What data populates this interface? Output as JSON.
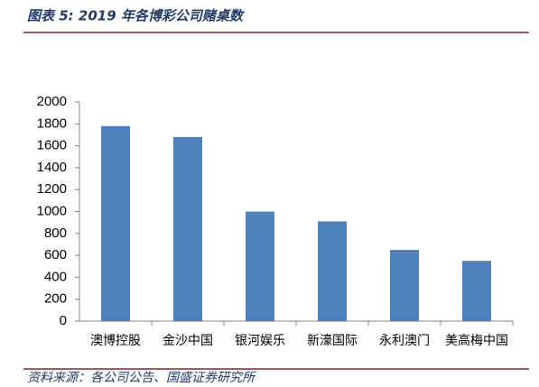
{
  "chart_data": {
    "type": "bar",
    "title": "图表 5: 2019 年各博彩公司赌桌数",
    "source": "资料来源：各公司公告、国盛证券研究所",
    "categories": [
      "澳博控股",
      "金沙中国",
      "银河娱乐",
      "新濠国际",
      "永利澳门",
      "美高梅中国"
    ],
    "values": [
      1780,
      1680,
      1000,
      910,
      650,
      550
    ],
    "color": "#4f81bd",
    "ylim": [
      0,
      2000
    ],
    "yticks": [
      0,
      200,
      400,
      600,
      800,
      1000,
      1200,
      1400,
      1600,
      1800,
      2000
    ],
    "grid": false
  }
}
